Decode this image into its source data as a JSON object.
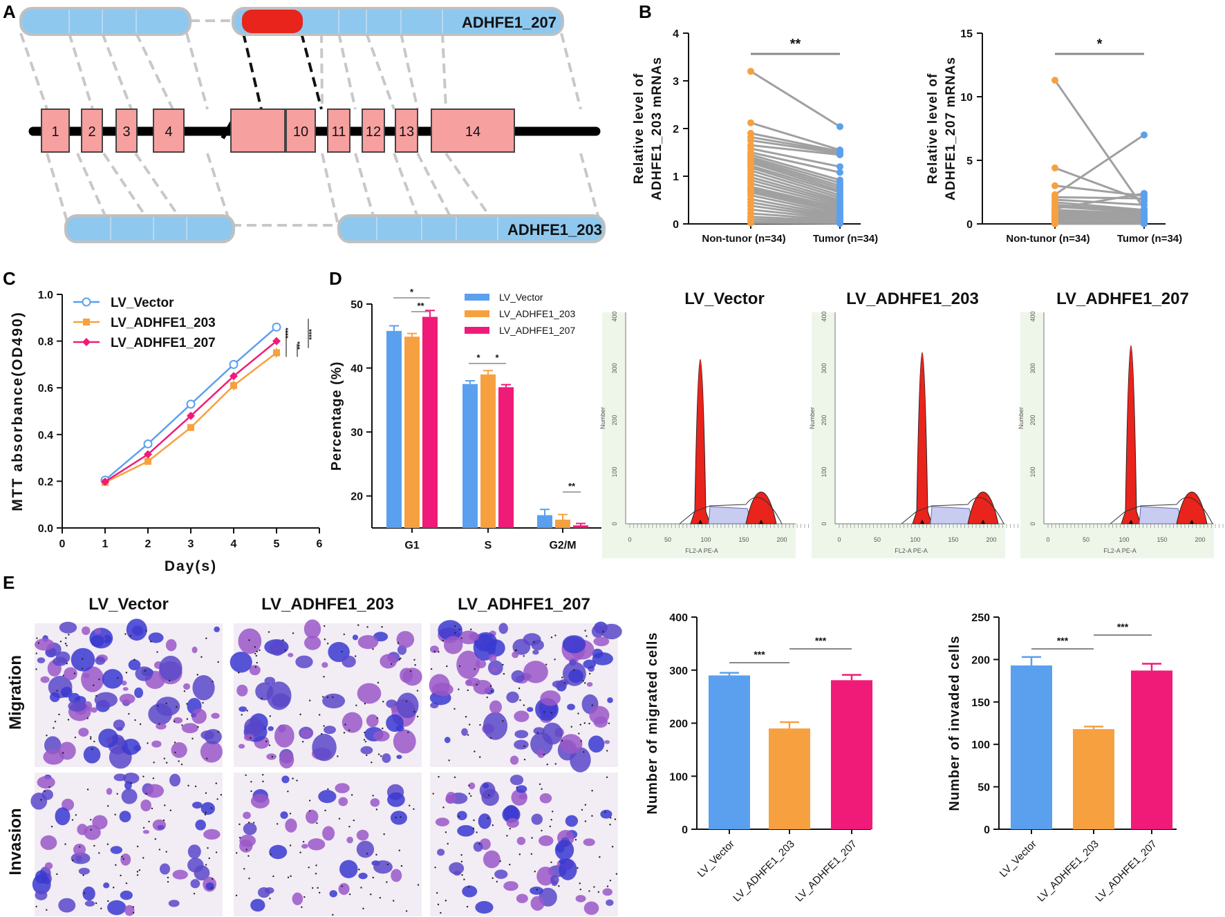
{
  "panels": {
    "A": "A",
    "B": "B",
    "C": "C",
    "D": "D",
    "E": "E"
  },
  "colors": {
    "blue": "#5aa0ef",
    "orange": "#f7a040",
    "pink": "#f01a78",
    "gray": "#a0a0a0",
    "exon": "#f7a0a0",
    "transcript": "#8ec8ee",
    "red": "#e8241c"
  },
  "panel_a": {
    "exons": [
      "1",
      "2",
      "3",
      "4",
      "",
      "10",
      "11",
      "12",
      "13",
      "14"
    ],
    "transcript_top": "ADHFE1_207",
    "transcript_bottom": "ADHFE1_203"
  },
  "chart_data": [
    {
      "id": "B1",
      "type": "scatter",
      "subtype": "paired-lines",
      "ylabel": "Relative level of\nADHFE1_203 mRNAs",
      "ylabel_lines": [
        "Relative level of",
        "ADHFE1_203 mRNAs"
      ],
      "categories": [
        "Non-tunor (n=34)",
        "Tumor (n=34)"
      ],
      "ylim": [
        0,
        4
      ],
      "yticks": [
        "0",
        "1",
        "2",
        "3",
        "4"
      ],
      "significance": "**",
      "series": [
        {
          "name": "Non-tunor (n=34)",
          "values": [
            3.2,
            2.12,
            1.9,
            1.82,
            1.75,
            1.65,
            1.58,
            1.5,
            1.45,
            1.4,
            1.36,
            1.32,
            1.28,
            1.22,
            1.18,
            1.12,
            1.05,
            0.98,
            0.92,
            0.85,
            0.78,
            0.74,
            0.7,
            0.66,
            0.6,
            0.52,
            0.45,
            0.38,
            0.3,
            0.22,
            0.15,
            0.1,
            0.05,
            0.02
          ]
        },
        {
          "name": "Tumor (n=34)",
          "values": [
            2.04,
            1.55,
            1.52,
            1.5,
            1.48,
            1.45,
            1.2,
            1.08,
            0.92,
            0.86,
            0.8,
            0.75,
            0.7,
            0.66,
            0.6,
            0.55,
            0.5,
            0.46,
            0.42,
            0.38,
            0.34,
            0.3,
            0.27,
            0.24,
            0.2,
            0.17,
            0.14,
            0.12,
            0.1,
            0.08,
            0.06,
            0.04,
            0.02,
            0.01
          ]
        }
      ]
    },
    {
      "id": "B2",
      "type": "scatter",
      "subtype": "paired-lines",
      "ylabel": "Relative level of\nADHFE1_207 mRNAs",
      "ylabel_lines": [
        "Relative level of",
        "ADHFE1_207 mRNAs"
      ],
      "categories": [
        "Non-tunor (n=34)",
        "Tumor (n=34)"
      ],
      "ylim": [
        0,
        15
      ],
      "yticks": [
        "0",
        "5",
        "10",
        "15"
      ],
      "significance": "*",
      "series": [
        {
          "name": "Non-tunor (n=34)",
          "values": [
            11.3,
            4.4,
            3.0,
            2.3,
            2.1,
            1.9,
            1.7,
            1.5,
            1.35,
            1.2,
            1.1,
            1.0,
            0.95,
            0.9,
            0.85,
            0.8,
            0.72,
            0.65,
            0.6,
            0.55,
            0.5,
            0.45,
            0.4,
            0.36,
            0.32,
            0.28,
            0.24,
            0.2,
            0.16,
            0.12,
            0.09,
            0.06,
            0.03,
            0.01
          ]
        },
        {
          "name": "Tumor (n=34)",
          "values": [
            1.2,
            1.8,
            2.2,
            7.0,
            2.0,
            1.5,
            1.1,
            1.0,
            0.9,
            2.4,
            0.8,
            0.75,
            0.7,
            0.6,
            0.55,
            0.5,
            0.45,
            0.4,
            0.35,
            0.3,
            0.28,
            0.25,
            0.22,
            0.2,
            0.18,
            0.15,
            0.12,
            0.1,
            0.08,
            0.06,
            0.04,
            0.03,
            0.02,
            0.01
          ]
        }
      ]
    },
    {
      "id": "C",
      "type": "line",
      "xlabel": "Day(s)",
      "ylabel": "MTT absorbance(OD490)",
      "x": [
        1,
        2,
        3,
        4,
        5
      ],
      "xlim": [
        0,
        6
      ],
      "ylim": [
        0,
        1.0
      ],
      "xticks": [
        "0",
        "1",
        "2",
        "3",
        "4",
        "5",
        "6"
      ],
      "yticks": [
        "0.0",
        "0.2",
        "0.4",
        "0.6",
        "0.8",
        "1.0"
      ],
      "legend": "top-left",
      "significance": [
        "****",
        "***",
        "****"
      ],
      "series": [
        {
          "name": "LV_Vector",
          "values": [
            0.205,
            0.36,
            0.53,
            0.7,
            0.86
          ]
        },
        {
          "name": "LV_ADHFE1_203",
          "values": [
            0.195,
            0.285,
            0.43,
            0.61,
            0.75
          ]
        },
        {
          "name": "LV_ADHFE1_207",
          "values": [
            0.198,
            0.315,
            0.48,
            0.65,
            0.8
          ]
        }
      ]
    },
    {
      "id": "D-bar",
      "type": "bar",
      "ylabel": "Percentage (%)",
      "categories": [
        "G1",
        "S",
        "G2/M"
      ],
      "ylim": [
        15,
        50
      ],
      "yticks": [
        "20",
        "30",
        "40",
        "50"
      ],
      "legend": "top-center",
      "significance": [
        "*",
        "**",
        "*",
        "*",
        "**"
      ],
      "series": [
        {
          "name": "LV_Vector",
          "values": [
            45.8,
            37.5,
            17.0
          ]
        },
        {
          "name": "LV_ADHFE1_203",
          "values": [
            44.9,
            39.0,
            16.3
          ]
        },
        {
          "name": "LV_ADHFE1_207",
          "values": [
            48.0,
            37.0,
            15.4
          ]
        }
      ]
    },
    {
      "id": "E-migration",
      "type": "bar",
      "ylabel": "Number of migrated cells",
      "categories": [
        "LV_Vector",
        "LV_ADHFE1_203",
        "LV_ADHFE1_207"
      ],
      "values": [
        290,
        190,
        281
      ],
      "ylim": [
        0,
        400
      ],
      "yticks": [
        "0",
        "100",
        "200",
        "300",
        "400"
      ],
      "significance": [
        "***",
        "***"
      ]
    },
    {
      "id": "E-invasion",
      "type": "bar",
      "ylabel": "Number of invaded cells",
      "categories": [
        "LV_Vector",
        "LV_ADHFE1_203",
        "LV_ADHFE1_207"
      ],
      "values": [
        193,
        118,
        187
      ],
      "ylim": [
        0,
        250
      ],
      "yticks": [
        "0",
        "50",
        "100",
        "150",
        "200",
        "250"
      ],
      "significance": [
        "***",
        "***"
      ]
    }
  ],
  "flow": {
    "titles": [
      "LV_Vector",
      "LV_ADHFE1_203",
      "LV_ADHFE1_207"
    ],
    "yticks": [
      "0",
      "100",
      "200",
      "300",
      "400"
    ],
    "xticks": [
      "0",
      "50",
      "100",
      "150",
      "200"
    ],
    "ylabel": "Number",
    "xlabel": "FL2-A PE-A"
  },
  "micro": {
    "col_titles": [
      "LV_Vector",
      "LV_ADHFE1_203",
      "LV_ADHFE1_207"
    ],
    "row_titles": [
      "Migration",
      "Invasion"
    ]
  }
}
